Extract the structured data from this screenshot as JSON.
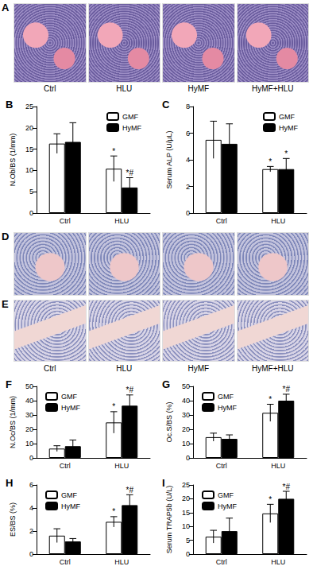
{
  "image_panels": [
    {
      "title": "A",
      "labels": [
        "Ctrl",
        "HLU",
        "HyMF",
        "HyMF+HLU"
      ]
    },
    {
      "title": "D"
    },
    {
      "title": "E",
      "labels": [
        "Ctrl",
        "HLU",
        "HyMF",
        "HyMF+HLU"
      ]
    }
  ],
  "chart_data": [
    {
      "type": "bar",
      "title": "B",
      "ylabel": "N.Ob/BS (1/mm)",
      "categories": [
        "Ctrl",
        "HLU"
      ],
      "series": [
        {
          "name": "GMF",
          "color": "#ffffff",
          "values": [
            16.3,
            10.4
          ],
          "errors": [
            2.3,
            3.0
          ],
          "annotations": [
            null,
            "*"
          ]
        },
        {
          "name": "HyMF",
          "color": "#000000",
          "values": [
            16.7,
            6.0
          ],
          "errors": [
            4.5,
            2.3
          ],
          "annotations": [
            null,
            "*#"
          ]
        }
      ],
      "ylim": [
        0,
        25
      ],
      "yticks": [
        0,
        5,
        10,
        15,
        20,
        25
      ],
      "legend": "upper right"
    },
    {
      "type": "bar",
      "title": "C",
      "ylabel": "Serum ALP (U/μL)",
      "categories": [
        "Ctrl",
        "HLU"
      ],
      "series": [
        {
          "name": "GMF",
          "color": "#ffffff",
          "values": [
            5.5,
            3.3
          ],
          "errors": [
            1.4,
            0.2
          ],
          "annotations": [
            null,
            "*"
          ]
        },
        {
          "name": "HyMF",
          "color": "#000000",
          "values": [
            5.2,
            3.3
          ],
          "errors": [
            1.5,
            0.8
          ],
          "annotations": [
            null,
            "*"
          ]
        }
      ],
      "ylim": [
        0,
        8
      ],
      "yticks": [
        0,
        2,
        4,
        6,
        8
      ],
      "legend": "upper right"
    },
    {
      "type": "bar",
      "title": "F",
      "ylabel": "N.Oc/BS (1/mm)",
      "categories": [
        "Ctrl",
        "HLU"
      ],
      "series": [
        {
          "name": "GMF",
          "color": "#ffffff",
          "values": [
            6.5,
            24.8
          ],
          "errors": [
            2.0,
            7.5
          ],
          "annotations": [
            null,
            "*"
          ]
        },
        {
          "name": "HyMF",
          "color": "#000000",
          "values": [
            8.2,
            36.5
          ],
          "errors": [
            4.3,
            7.5
          ],
          "annotations": [
            null,
            "*#"
          ]
        }
      ],
      "ylim": [
        0,
        50
      ],
      "yticks": [
        0,
        10,
        20,
        30,
        40,
        50
      ],
      "legend": "upper left"
    },
    {
      "type": "bar",
      "title": "G",
      "ylabel": "Oc.S/BS (%)",
      "categories": [
        "Ctrl",
        "HLU"
      ],
      "series": [
        {
          "name": "GMF",
          "color": "#ffffff",
          "values": [
            14.5,
            31.5
          ],
          "errors": [
            2.8,
            6.0
          ],
          "annotations": [
            null,
            "*"
          ]
        },
        {
          "name": "HyMF",
          "color": "#000000",
          "values": [
            13.3,
            40.0
          ],
          "errors": [
            2.8,
            4.5
          ],
          "annotations": [
            null,
            "*#"
          ]
        }
      ],
      "ylim": [
        0,
        50
      ],
      "yticks": [
        0,
        10,
        20,
        30,
        40,
        50
      ],
      "legend": "upper left"
    },
    {
      "type": "bar",
      "title": "H",
      "ylabel": "ES/BS (%)",
      "categories": [
        "Ctrl",
        "HLU"
      ],
      "series": [
        {
          "name": "GMF",
          "color": "#ffffff",
          "values": [
            1.6,
            2.8
          ],
          "errors": [
            0.6,
            0.45
          ],
          "annotations": [
            null,
            "*"
          ]
        },
        {
          "name": "HyMF",
          "color": "#000000",
          "values": [
            1.1,
            4.25
          ],
          "errors": [
            0.25,
            0.9
          ],
          "annotations": [
            null,
            "*#"
          ]
        }
      ],
      "ylim": [
        0,
        6
      ],
      "yticks": [
        0,
        2,
        4,
        6
      ],
      "legend": "upper left"
    },
    {
      "type": "bar",
      "title": "I",
      "ylabel": "Serum TRAP5b (U/L)",
      "categories": [
        "Ctrl",
        "HLU"
      ],
      "series": [
        {
          "name": "GMF",
          "color": "#ffffff",
          "values": [
            6.3,
            14.7
          ],
          "errors": [
            2.3,
            3.3
          ],
          "annotations": [
            null,
            "*"
          ]
        },
        {
          "name": "HyMF",
          "color": "#000000",
          "values": [
            8.3,
            20.0
          ],
          "errors": [
            4.7,
            2.7
          ],
          "annotations": [
            null,
            "*#"
          ]
        }
      ],
      "ylim": [
        0,
        25
      ],
      "yticks": [
        0,
        5,
        10,
        15,
        20,
        25
      ],
      "legend": "upper left"
    }
  ]
}
